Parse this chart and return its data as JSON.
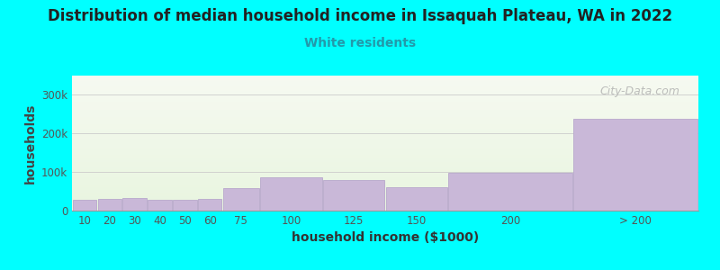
{
  "title": "Distribution of median household income in Issaquah Plateau, WA in 2022",
  "subtitle": "White residents",
  "xlabel": "household income ($1000)",
  "ylabel": "households",
  "background_color": "#00FFFF",
  "bar_color": "#c9b8d8",
  "bar_edge_color": "#b8a8cc",
  "title_color": "#222222",
  "subtitle_color": "#2299aa",
  "tick_color": "#555555",
  "ylabel_color": "#444444",
  "xlabel_color": "#333333",
  "watermark": "City-Data.com",
  "categories": [
    "10",
    "20",
    "30",
    "40",
    "50",
    "60",
    "75",
    "100",
    "125",
    "150",
    "200",
    "> 200"
  ],
  "values": [
    27000,
    30000,
    32000,
    28000,
    29000,
    30000,
    58000,
    87000,
    80000,
    60000,
    98000,
    238000
  ],
  "bar_lefts": [
    0,
    10,
    20,
    30,
    40,
    50,
    60,
    75,
    100,
    125,
    150,
    200
  ],
  "bar_widths": [
    10,
    10,
    10,
    10,
    10,
    10,
    15,
    25,
    25,
    25,
    50,
    50
  ],
  "xlim": [
    0,
    250
  ],
  "ylim": [
    0,
    350000
  ],
  "yticks": [
    0,
    100000,
    200000,
    300000
  ],
  "ytick_labels": [
    "0",
    "100k",
    "200k",
    "300k"
  ],
  "title_fontsize": 12,
  "subtitle_fontsize": 10,
  "axis_label_fontsize": 10,
  "tick_fontsize": 8.5,
  "watermark_fontsize": 9
}
